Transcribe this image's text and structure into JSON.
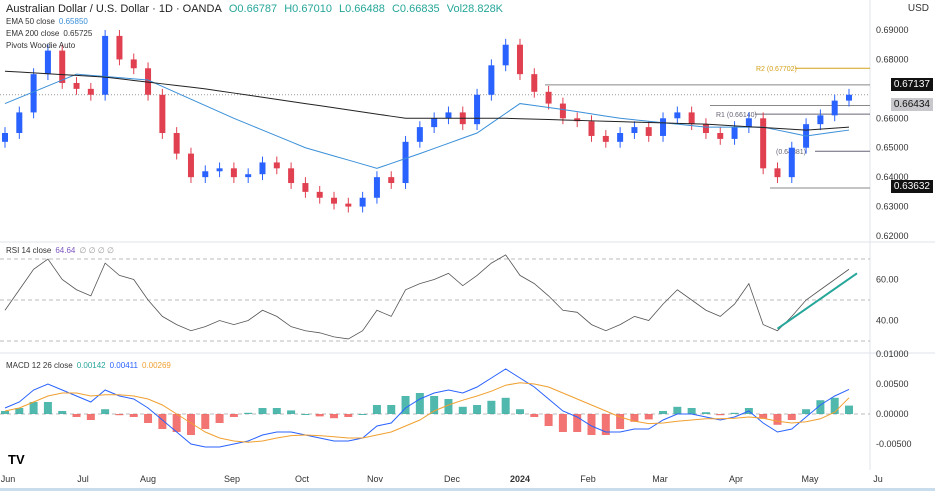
{
  "header": {
    "title": "Australian Dollar / U.S. Dollar · 1D · OANDA",
    "o": "O0.66787",
    "h": "H0.67010",
    "l": "L0.66488",
    "c": "C0.66835",
    "vol": "Vol28.828K",
    "currency": "USD"
  },
  "legend": {
    "ema50_label": "EMA 50 close",
    "ema50_value": "0.65850",
    "ema200_label": "EMA 200 close",
    "ema200_value": "0.65725",
    "pivots": "Pivots Woodie Auto",
    "rsi_label": "RSI 14 close",
    "rsi_value": "64.64",
    "rsi_extra": "∅ ∅ ∅ ∅",
    "macd_label": "MACD 12 26 close",
    "macd_hist": "0.00142",
    "macd_line": "0.00411",
    "macd_signal": "0.00269"
  },
  "colors": {
    "up": "#2962ff",
    "down": "#e04050",
    "ema50": "#3a8fd8",
    "ema200": "#222222",
    "rsi": "#7e57c2",
    "trendline": "#26a69a",
    "macd": "#2962ff",
    "signal": "#f0a030",
    "hist_up": "#26a69a",
    "hist_down": "#ef5350"
  },
  "chart_data": [
    {
      "type": "candlestick",
      "ylim": [
        0.62,
        0.69
      ],
      "y_ticks": [
        "0.69000",
        "0.68000",
        "0.66000",
        "0.65000",
        "0.64000",
        "0.63000",
        "0.62000"
      ],
      "x_ticks": [
        "Jun",
        "Jul",
        "Aug",
        "Sep",
        "Oct",
        "Nov",
        "Dec",
        "2024",
        "Feb",
        "Mar",
        "Apr",
        "May",
        "Ju"
      ],
      "closes": [
        0.655,
        0.662,
        0.675,
        0.683,
        0.672,
        0.67,
        0.668,
        0.688,
        0.68,
        0.677,
        0.668,
        0.655,
        0.648,
        0.64,
        0.642,
        0.643,
        0.64,
        0.641,
        0.645,
        0.643,
        0.638,
        0.635,
        0.633,
        0.631,
        0.63,
        0.633,
        0.64,
        0.638,
        0.652,
        0.657,
        0.66,
        0.662,
        0.658,
        0.668,
        0.678,
        0.685,
        0.675,
        0.669,
        0.665,
        0.66,
        0.659,
        0.654,
        0.652,
        0.655,
        0.657,
        0.654,
        0.66,
        0.662,
        0.658,
        0.655,
        0.653,
        0.657,
        0.66,
        0.643,
        0.64,
        0.65,
        0.658,
        0.661,
        0.666,
        0.668
      ],
      "ema50": [
        [
          0,
          0.665
        ],
        [
          5,
          0.675
        ],
        [
          10,
          0.673
        ],
        [
          16,
          0.66
        ],
        [
          21,
          0.65
        ],
        [
          26,
          0.643
        ],
        [
          29,
          0.648
        ],
        [
          33,
          0.655
        ],
        [
          36,
          0.665
        ],
        [
          39,
          0.663
        ],
        [
          43,
          0.66
        ],
        [
          49,
          0.657
        ],
        [
          53,
          0.657
        ],
        [
          56,
          0.654
        ],
        [
          59,
          0.656
        ]
      ],
      "ema200": [
        [
          0,
          0.676
        ],
        [
          7,
          0.674
        ],
        [
          14,
          0.67
        ],
        [
          21,
          0.665
        ],
        [
          28,
          0.66
        ],
        [
          35,
          0.66
        ],
        [
          42,
          0.659
        ],
        [
          49,
          0.658
        ],
        [
          56,
          0.656
        ],
        [
          59,
          0.657
        ]
      ],
      "price_labels": [
        {
          "value": "0.67137",
          "style": "dark"
        },
        {
          "value": "0.66434",
          "style": "grey"
        },
        {
          "value": "0.63632",
          "style": "dark"
        }
      ],
      "pivots": [
        {
          "label": "R2 (0.67702)",
          "value": 0.67702
        },
        {
          "label": "R1 (0.66140)",
          "value": 0.6614
        },
        {
          "label": "(0.64881)",
          "value": 0.64881
        }
      ]
    },
    {
      "type": "line",
      "name": "RSI",
      "ylim": [
        25,
        75
      ],
      "y_ticks": [
        "60.00",
        "40.00"
      ],
      "levels": [
        70,
        50,
        30
      ],
      "values": [
        45,
        55,
        65,
        70,
        60,
        55,
        52,
        68,
        62,
        60,
        50,
        42,
        38,
        35,
        37,
        40,
        38,
        40,
        45,
        42,
        37,
        35,
        34,
        32,
        31,
        35,
        45,
        42,
        55,
        58,
        60,
        63,
        57,
        62,
        68,
        72,
        62,
        58,
        52,
        45,
        44,
        38,
        35,
        38,
        42,
        40,
        48,
        55,
        50,
        45,
        42,
        48,
        58,
        38,
        35,
        42,
        50,
        55,
        60,
        65
      ]
    },
    {
      "type": "line",
      "name": "MACD",
      "ylim": [
        -0.0075,
        0.0085
      ],
      "y_ticks": [
        "0.01000",
        "0.00500",
        "0.00000",
        "-0.00500"
      ],
      "macd": [
        0.001,
        0.002,
        0.004,
        0.005,
        0.004,
        0.003,
        0.002,
        0.004,
        0.003,
        0.0025,
        0.001,
        -0.001,
        -0.003,
        -0.005,
        -0.0055,
        -0.0055,
        -0.005,
        -0.0045,
        -0.0035,
        -0.003,
        -0.003,
        -0.0035,
        -0.004,
        -0.0045,
        -0.0045,
        -0.004,
        -0.002,
        -0.0015,
        0.001,
        0.0025,
        0.0035,
        0.004,
        0.0035,
        0.0045,
        0.006,
        0.0075,
        0.006,
        0.0045,
        0.0025,
        0.0005,
        -0.0005,
        -0.002,
        -0.003,
        -0.003,
        -0.0025,
        -0.0025,
        -0.001,
        0,
        0,
        -0.0005,
        -0.001,
        -0.0005,
        0.0005,
        -0.0015,
        -0.003,
        -0.0025,
        -0.0005,
        0.0015,
        0.003,
        0.0041
      ],
      "signal": [
        0.0005,
        0.001,
        0.002,
        0.003,
        0.0035,
        0.0035,
        0.003,
        0.0032,
        0.0032,
        0.003,
        0.0025,
        0.0015,
        0,
        -0.0015,
        -0.003,
        -0.004,
        -0.0045,
        -0.0047,
        -0.0045,
        -0.004,
        -0.0036,
        -0.0035,
        -0.0036,
        -0.0038,
        -0.004,
        -0.004,
        -0.0035,
        -0.003,
        -0.002,
        -0.001,
        0.0005,
        0.0015,
        0.0023,
        0.003,
        0.0038,
        0.0048,
        0.0052,
        0.005,
        0.0045,
        0.0035,
        0.0025,
        0.0015,
        0.0005,
        -0.0005,
        -0.0012,
        -0.0016,
        -0.0015,
        -0.0012,
        -0.001,
        -0.0008,
        -0.0008,
        -0.0007,
        -0.0005,
        -0.0007,
        -0.0012,
        -0.0015,
        -0.0013,
        -0.0008,
        0.0003,
        0.0027
      ]
    }
  ]
}
